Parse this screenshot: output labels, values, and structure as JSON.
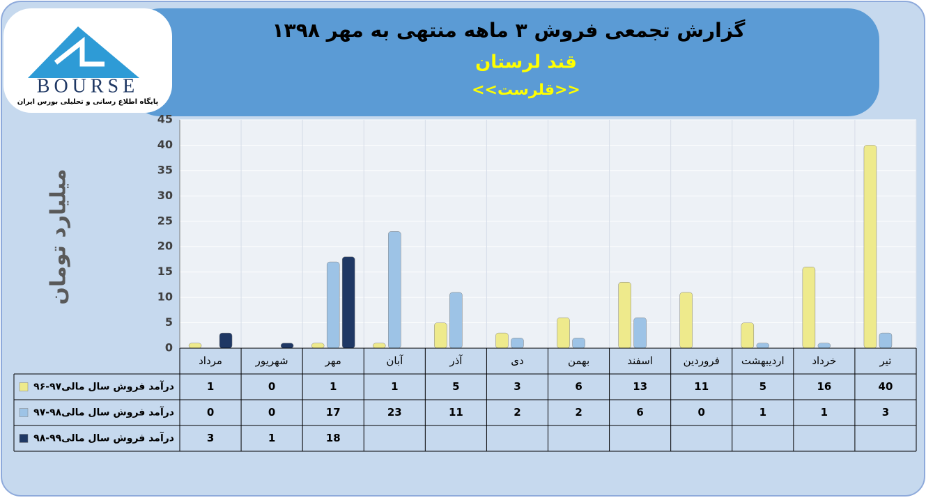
{
  "logo": {
    "text": "BOURSE",
    "caption": "پایگاه اطلاع رسانی و تحلیلی بورس ایران"
  },
  "chart_data": {
    "type": "bar",
    "title": "گزارش تجمعی فروش ۳ ماهه منتهی به مهر ۱۳۹۸",
    "subtitle": "قند لرستان",
    "annotations": [
      "<<قلرست>>"
    ],
    "y_label": "میلیارد تومان",
    "categories": [
      "مرداد",
      "شهریور",
      "مهر",
      "آبان",
      "آذر",
      "دی",
      "بهمن",
      "اسفند",
      "فروردین",
      "اردیبهشت",
      "خرداد",
      "تیر"
    ],
    "series": [
      {
        "name": "درآمد فروش سال مالی۹۷-۹۶",
        "color": "#eeea8c",
        "values": [
          1,
          0,
          1,
          1,
          5,
          3,
          6,
          13,
          11,
          5,
          16,
          40
        ]
      },
      {
        "name": "درآمد فروش سال مالی۹۸-۹۷",
        "color": "#9dc3e6",
        "values": [
          0,
          0,
          17,
          23,
          11,
          2,
          2,
          6,
          0,
          1,
          1,
          3
        ]
      },
      {
        "name": "درآمد فروش سال مالی۹۹-۹۸",
        "color": "#1f3864",
        "values": [
          3,
          1,
          18,
          null,
          null,
          null,
          null,
          null,
          null,
          null,
          null,
          null
        ]
      }
    ],
    "ylim": [
      0,
      45
    ],
    "yticks": [
      0,
      5,
      10,
      15,
      20,
      25,
      30,
      35,
      40,
      45
    ],
    "grid": true
  }
}
